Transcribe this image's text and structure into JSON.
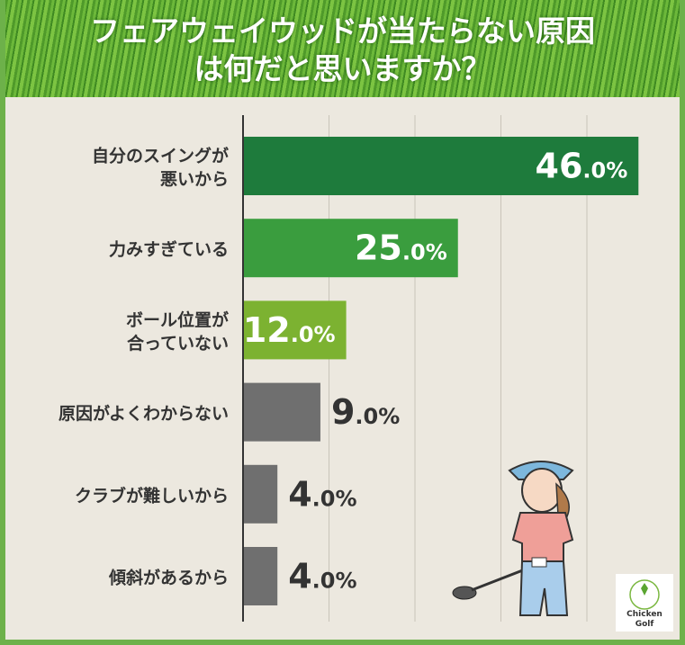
{
  "title_lines": [
    "フェアウェイウッドが当たらない原因",
    "は何だと思いますか？"
  ],
  "chart_data": {
    "type": "bar",
    "orientation": "horizontal",
    "title": "フェアウェイウッドが当たらない原因は何だと思いますか？",
    "categories": [
      [
        "自分のスイングが",
        "悪いから"
      ],
      [
        "力みすぎている"
      ],
      [
        "ボール位置が",
        "合っていない"
      ],
      [
        "原因がよくわからない"
      ],
      [
        "クラブが難しいから"
      ],
      [
        "傾斜があるから"
      ]
    ],
    "values": [
      46.0,
      25.0,
      12.0,
      9.0,
      4.0,
      4.0
    ],
    "unit": "%",
    "xlim": [
      0,
      49
    ],
    "grid": true,
    "gridlines": [
      10,
      20,
      30,
      40
    ],
    "colors": [
      "#1e7b3c",
      "#3a9d3e",
      "#7cb231",
      "#6f6f6f",
      "#6f6f6f",
      "#6f6f6f"
    ]
  },
  "logo": {
    "text": [
      "Chicken",
      "Golf"
    ]
  }
}
